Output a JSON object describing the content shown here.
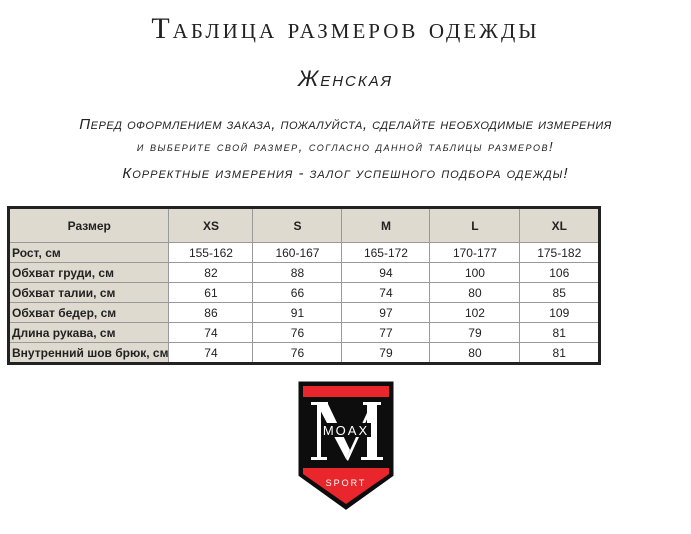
{
  "title": "Таблица размеров одежды",
  "subtitle": "Женская",
  "instructions": [
    "Перед оформлением заказа, пожалуйста, сделайте необходимые измерения",
    "и выберите свой размер, согласно данной таблицы размеров!",
    "Корректные измерения - залог успешного подбора одежды!"
  ],
  "table": {
    "header": [
      "Размер",
      "XS",
      "S",
      "M",
      "L",
      "XL"
    ],
    "rows": [
      [
        "Рост, см",
        "155-162",
        "160-167",
        "165-172",
        "170-177",
        "175-182"
      ],
      [
        "Обхват груди, см",
        "82",
        "88",
        "94",
        "100",
        "106"
      ],
      [
        "Обхват талии, см",
        "61",
        "66",
        "74",
        "80",
        "85"
      ],
      [
        "Обхват бедер, см",
        "86",
        "91",
        "97",
        "102",
        "109"
      ],
      [
        "Длина рукава, см",
        "74",
        "76",
        "77",
        "79",
        "81"
      ],
      [
        "Внутренний шов брюк, см",
        "74",
        "76",
        "79",
        "80",
        "81"
      ]
    ]
  },
  "logo": {
    "letter": "M",
    "brand": "MOAX",
    "tagline": "SPORT",
    "colors": {
      "red": "#e8262b",
      "black": "#0d0d0d"
    }
  }
}
